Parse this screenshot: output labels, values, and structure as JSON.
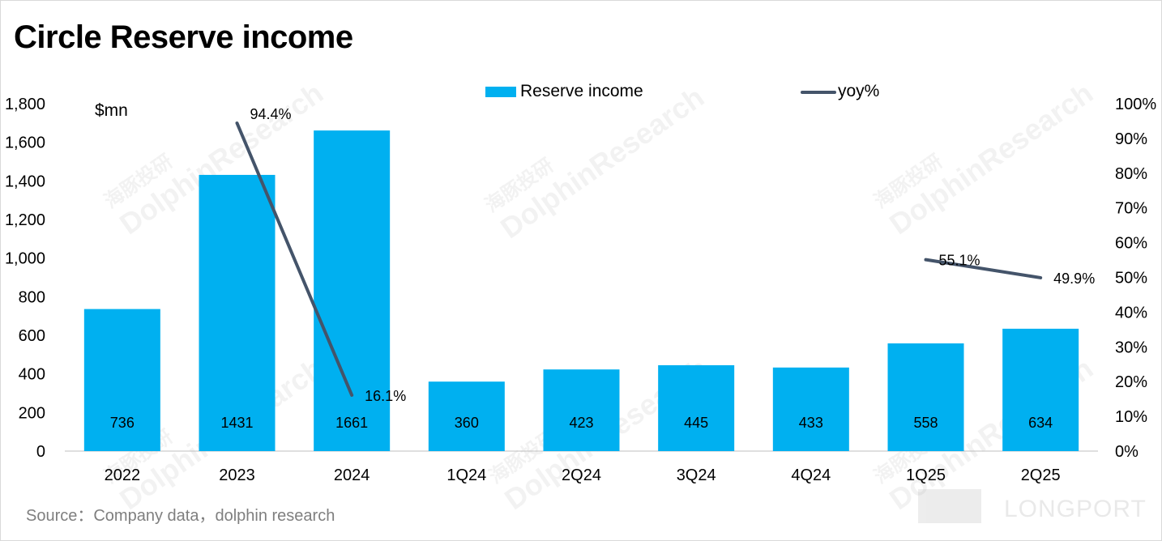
{
  "title": "Circle Reserve income",
  "source": "Source：Company data，dolphin research",
  "watermark": {
    "line1": "海豚投研",
    "line2": "DolphinResearch"
  },
  "logo": {
    "text": "LONGPORT"
  },
  "colors": {
    "bar": "#00b0f0",
    "line": "#44546a",
    "axis": "#bfbfbf",
    "text": "#000000"
  },
  "chart_data": {
    "type": "bar",
    "categories": [
      "2022",
      "2023",
      "2024",
      "1Q24",
      "2Q24",
      "3Q24",
      "4Q24",
      "1Q25",
      "2Q25"
    ],
    "series": [
      {
        "name": "Reserve income",
        "type": "bar",
        "axis": "left",
        "values": [
          736,
          1431,
          1661,
          360,
          423,
          445,
          433,
          558,
          634
        ],
        "labels": [
          "736",
          "1431",
          "1661",
          "360",
          "423",
          "445",
          "433",
          "558",
          "634"
        ]
      },
      {
        "name": "yoy%",
        "type": "line",
        "axis": "right",
        "values": [
          null,
          94.4,
          16.1,
          null,
          null,
          null,
          null,
          55.1,
          49.9
        ],
        "labels": [
          "",
          "94.4%",
          "16.1%",
          "",
          "",
          "",
          "",
          "55.1%",
          "49.9%"
        ]
      }
    ],
    "y_left": {
      "unit_label": "$mn",
      "range": [
        0,
        1800
      ],
      "ticks": [
        "0",
        "200",
        "400",
        "600",
        "800",
        "1,000",
        "1,200",
        "1,400",
        "1,600",
        "1,800"
      ]
    },
    "y_right": {
      "range": [
        0,
        100
      ],
      "ticks": [
        "0%",
        "10%",
        "20%",
        "30%",
        "40%",
        "50%",
        "60%",
        "70%",
        "80%",
        "90%",
        "100%"
      ]
    },
    "legend": {
      "position": "top",
      "items": [
        "Reserve income",
        "yoy%"
      ]
    },
    "grid": false
  }
}
